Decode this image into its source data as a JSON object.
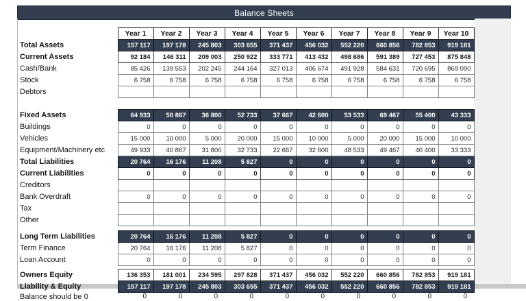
{
  "title": "Balance Sheets",
  "colors": {
    "accent_dark_navy": "#333F50",
    "bottom_strip_gray": "#c9c9c9",
    "side_panel_gray": "#f0f0f1",
    "cell_border_gray": "#7f7f7f"
  },
  "columns": [
    "Year 1",
    "Year 2",
    "Year 3",
    "Year 4",
    "Year 5",
    "Year 6",
    "Year 7",
    "Year 8",
    "Year 9",
    "Year 10"
  ],
  "rows": [
    {
      "type": "dark",
      "label": "Total Assets",
      "values": [
        "157 117",
        "197 178",
        "245 803",
        "303 655",
        "371 437",
        "456 032",
        "552 220",
        "660 856",
        "782 853",
        "919 181"
      ]
    },
    {
      "type": "boldvals",
      "label": "Current Assets",
      "values": [
        "92 184",
        "146 311",
        "209 003",
        "250 922",
        "333 771",
        "413 432",
        "498 686",
        "591 389",
        "727 453",
        "875 848"
      ]
    },
    {
      "type": "normal",
      "label": "Cash/Bank",
      "values": [
        "85 426",
        "139 553",
        "202 245",
        "244 164",
        "327 013",
        "406 674",
        "491 928",
        "584 631",
        "720 695",
        "869 090"
      ]
    },
    {
      "type": "normal",
      "label": "Stock",
      "values": [
        "6 758",
        "6 758",
        "6 758",
        "6 758",
        "6 758",
        "6 758",
        "6 758",
        "6 758",
        "6 758",
        "6 758"
      ]
    },
    {
      "type": "normal",
      "label": "Debtors",
      "values": [
        "",
        "",
        "",
        "",
        "",
        "",
        "",
        "",
        "",
        ""
      ]
    },
    {
      "type": "gap",
      "size": "lg"
    },
    {
      "type": "dark",
      "label": "Fixed Assets",
      "values": [
        "64 933",
        "50 867",
        "36 800",
        "52 733",
        "37 667",
        "42 600",
        "53 533",
        "69 467",
        "55 400",
        "43 333"
      ]
    },
    {
      "type": "normal",
      "label": "Buildings",
      "values": [
        "0",
        "0",
        "0",
        "0",
        "0",
        "0",
        "0",
        "0",
        "0",
        "0"
      ]
    },
    {
      "type": "normal",
      "label": "Vehicles",
      "values": [
        "15 000",
        "10 000",
        "5 000",
        "20 000",
        "15 000",
        "10 000",
        "5 000",
        "20 000",
        "15 000",
        "10 000"
      ]
    },
    {
      "type": "normal",
      "label": "Equipment/Machinery etc",
      "values": [
        "49 933",
        "40 867",
        "31 800",
        "32 733",
        "22 667",
        "32 600",
        "48 533",
        "49 467",
        "40 400",
        "33 333"
      ]
    },
    {
      "type": "dark",
      "label": "Total Liabilities",
      "values": [
        "20 764",
        "16 176",
        "11 208",
        "5 827",
        "0",
        "0",
        "0",
        "0",
        "0",
        "0"
      ]
    },
    {
      "type": "boldvals",
      "label": "Current Liabilities",
      "values": [
        "0",
        "0",
        "0",
        "0",
        "0",
        "0",
        "0",
        "0",
        "0",
        "0"
      ]
    },
    {
      "type": "normal",
      "label": "Creditors",
      "values": [
        "",
        "",
        "",
        "",
        "",
        "",
        "",
        "",
        "",
        ""
      ]
    },
    {
      "type": "normal",
      "label": "Bank Overdraft",
      "values": [
        "0",
        "0",
        "0",
        "0",
        "0",
        "0",
        "0",
        "0",
        "0",
        "0"
      ]
    },
    {
      "type": "normal",
      "label": "Tax",
      "values": [
        "",
        "",
        "",
        "",
        "",
        "",
        "",
        "",
        "",
        ""
      ]
    },
    {
      "type": "normal",
      "label": "Other",
      "values": [
        "",
        "",
        "",
        "",
        "",
        "",
        "",
        "",
        "",
        ""
      ]
    },
    {
      "type": "gap",
      "size": "sm"
    },
    {
      "type": "dark",
      "label": "Long Term Liabilities",
      "values": [
        "20 764",
        "16 176",
        "11 208",
        "5 827",
        "0",
        "0",
        "0",
        "0",
        "0",
        "0"
      ]
    },
    {
      "type": "normal",
      "label": "Term Finance",
      "values": [
        "20 764",
        "16 176",
        "11 208",
        "5 827",
        "0",
        "0",
        "0",
        "0",
        "0",
        "0"
      ]
    },
    {
      "type": "normal",
      "label": "Loan Account",
      "values": [
        "0",
        "0",
        "0",
        "0",
        "0",
        "0",
        "0",
        "0",
        "0",
        "0"
      ]
    },
    {
      "type": "gap",
      "size": "xs"
    },
    {
      "type": "boldvals",
      "label": "Owners Equity",
      "values": [
        "136 353",
        "181 001",
        "234 595",
        "297 828",
        "371 437",
        "456 032",
        "552 220",
        "660 856",
        "782 853",
        "919 181"
      ]
    },
    {
      "type": "dark",
      "label": "Liability & Equity",
      "values": [
        "157 117",
        "197 178",
        "245 803",
        "303 655",
        "371 437",
        "456 032",
        "552 220",
        "660 856",
        "782 853",
        "919 181"
      ]
    },
    {
      "type": "plain",
      "label": "Balance should be 0",
      "values": [
        "0",
        "0",
        "0",
        "0",
        "0",
        "0",
        "0",
        "0",
        "0",
        "0"
      ]
    }
  ]
}
